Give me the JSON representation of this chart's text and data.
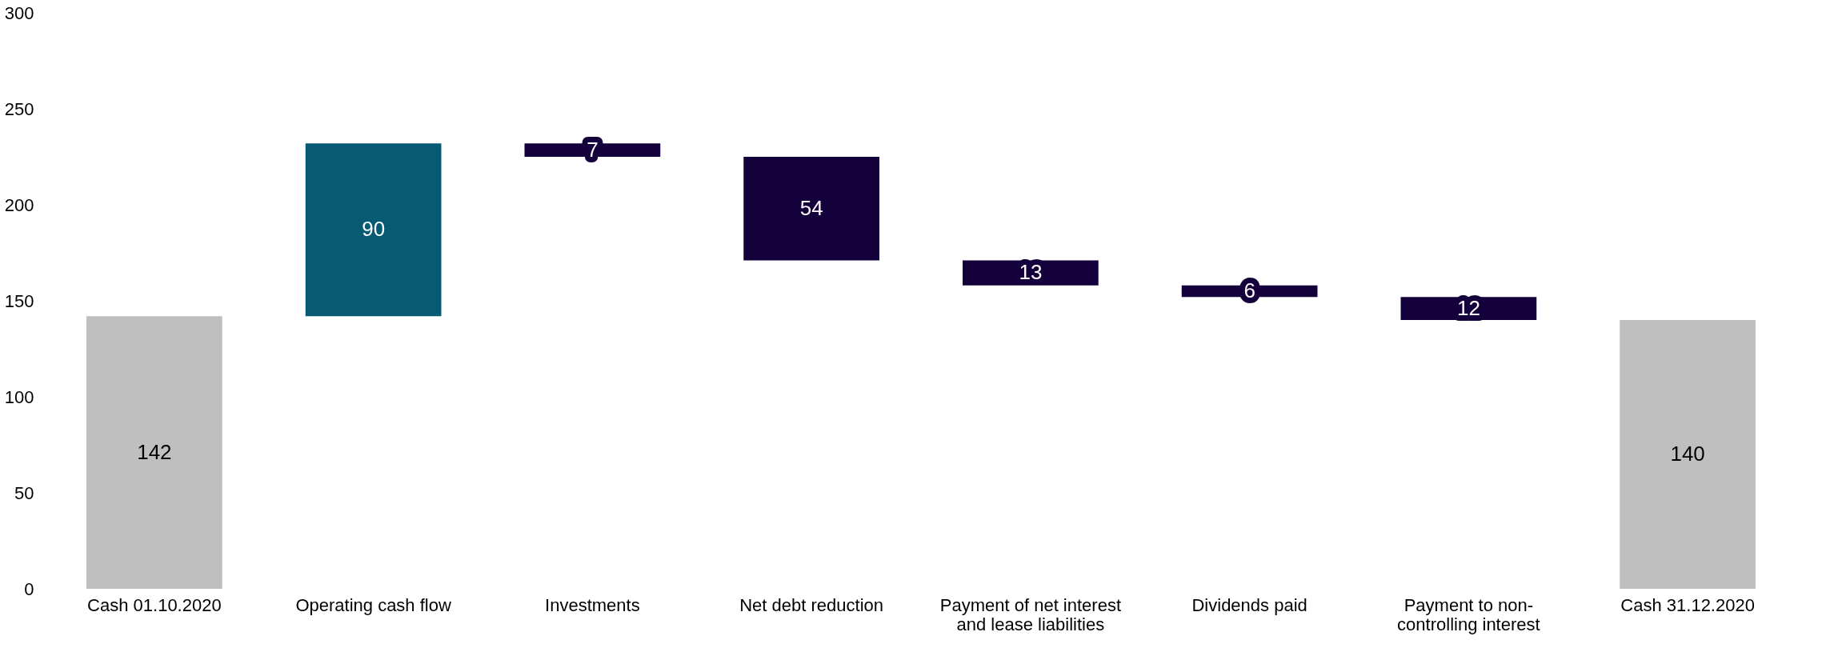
{
  "chart_data": {
    "type": "bar",
    "categories": [
      "Cash 01.10.2020",
      "Operating cash flow",
      "Investments",
      "Net debt reduction",
      "Payment of net interest and lease liabilities",
      "Dividends paid",
      "Payment to non-controlling interest",
      "Cash 31.12.2020"
    ],
    "values": [
      142,
      90,
      7,
      54,
      13,
      6,
      12,
      140
    ],
    "base": [
      0,
      142,
      225,
      171,
      158,
      152,
      140,
      0
    ],
    "colors": [
      "#bfbfbf",
      "#065a73",
      "#14003a",
      "#14003a",
      "#14003a",
      "#14003a",
      "#14003a",
      "#bfbfbf"
    ],
    "ylim": [
      0,
      300
    ],
    "yticks": [
      0,
      50,
      100,
      150,
      200,
      250,
      300
    ],
    "data_labels": true
  }
}
